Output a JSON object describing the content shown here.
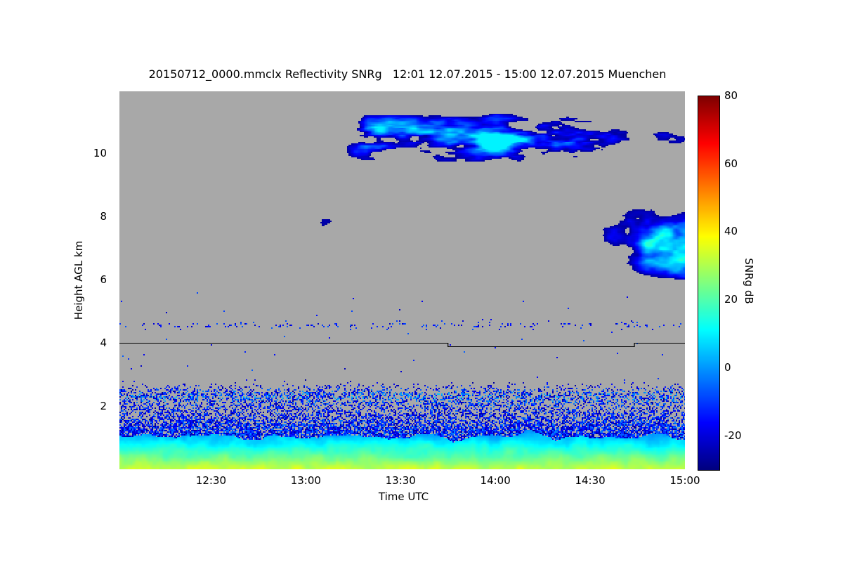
{
  "title": "20150712_0000.mmclx Reflectivity SNRg   12:01 12.07.2015 - 15:00 12.07.2015 Muenchen",
  "axes": {
    "xlabel": "Time UTC",
    "ylabel": "Height AGL km"
  },
  "colorbar": {
    "label": "SNRg dB"
  },
  "chart_data": {
    "type": "heatmap",
    "title": "20150712_0000.mmclx Reflectivity SNRg   12:01 12.07.2015 - 15:00 12.07.2015 Muenchen",
    "station": "Muenchen",
    "xlabel": "Time UTC",
    "ylabel": "Height AGL km",
    "x_range": [
      "12:01",
      "15:00"
    ],
    "x_ticks": [
      "12:30",
      "13:00",
      "13:30",
      "14:00",
      "14:30",
      "15:00"
    ],
    "y_range_km": [
      0,
      11.95
    ],
    "y_ticks": [
      2,
      4,
      6,
      8,
      10
    ],
    "colorbar": {
      "label": "SNRg dB",
      "range_db": [
        -30,
        80
      ],
      "ticks": [
        80,
        60,
        40,
        20,
        0,
        -20
      ],
      "colormap": "jet"
    },
    "no_data_color": "#a8a8a8",
    "features": [
      {
        "name": "surface-echo-layer",
        "description": "strong near-surface echo, yellow-green at ground fading to cyan/blue with height",
        "height_km": [
          0,
          1.1
        ],
        "snr_db": [
          -2,
          34
        ]
      },
      {
        "name": "boundary-layer-speckle",
        "description": "dense speckled blue echoes with brighter cyan band near 2.3 km, thinning out toward 3 km",
        "height_km": [
          1.1,
          3.0
        ],
        "snr_db": [
          -28,
          8
        ]
      },
      {
        "name": "insect-echo-line",
        "description": "intermittent dotted echo line near 4.55 km with sparse dots between 3 and 5.6 km",
        "height_km": [
          4.4,
          4.7
        ],
        "snr_db": [
          -24,
          -6
        ]
      },
      {
        "name": "mid-level-cloud",
        "description": "broken mid-level cloud deck with dark-blue edges and bright cyan cores, largest system 13:20-14:15",
        "height_km": [
          5.7,
          9.4
        ],
        "time_range": [
          "12:01",
          "15:00"
        ],
        "snr_db": [
          -27,
          16
        ]
      },
      {
        "name": "upper-level-cloud",
        "description": "patchy streaky cirrus-like echoes",
        "height_km": [
          9.4,
          11.6
        ],
        "time_range": [
          "12:10",
          "15:00"
        ],
        "snr_db": [
          -27,
          10
        ]
      },
      {
        "name": "level-marker-line",
        "description": "thin black horizontal marker line near 4 km with a lowered step between 13:45 and 14:44",
        "color": "#000000",
        "segments": [
          {
            "from": "12:01",
            "to": "13:45",
            "height_km": 4.0
          },
          {
            "from": "13:45",
            "to": "14:44",
            "height_km": 3.89
          },
          {
            "from": "14:44",
            "to": "15:00",
            "height_km": 4.0
          }
        ]
      }
    ]
  }
}
